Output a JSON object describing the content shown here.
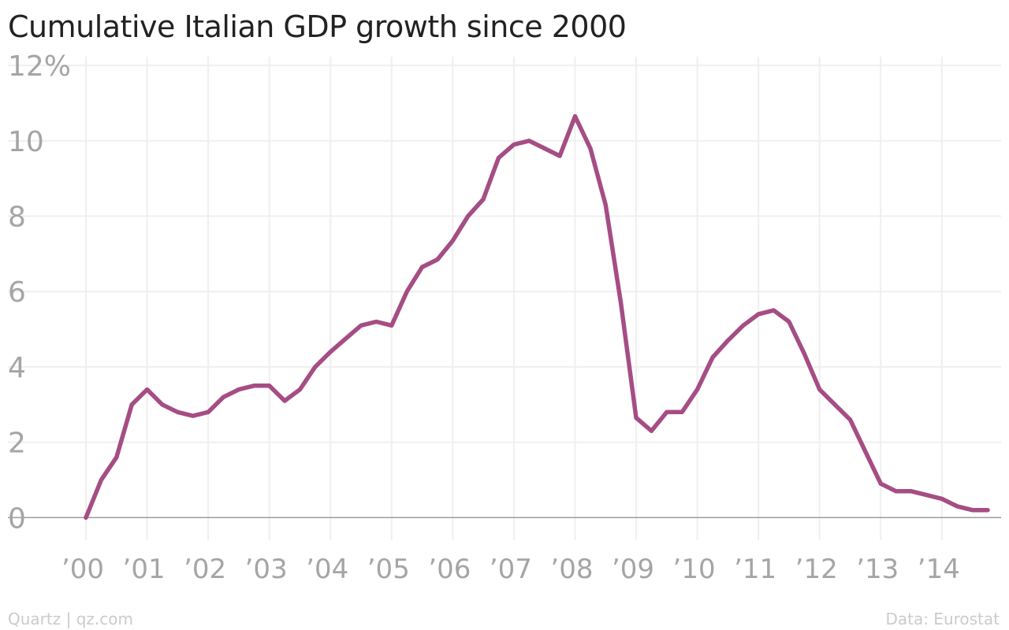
{
  "chart_data": {
    "type": "line",
    "title": "Cumulative Italian GDP growth since 2000",
    "xlabel": "",
    "ylabel": "",
    "y_ticks": [
      {
        "value": 0,
        "label": "0"
      },
      {
        "value": 2,
        "label": "2"
      },
      {
        "value": 4,
        "label": "4"
      },
      {
        "value": 6,
        "label": "6"
      },
      {
        "value": 8,
        "label": "8"
      },
      {
        "value": 10,
        "label": "10"
      },
      {
        "value": 12,
        "label": "12%"
      }
    ],
    "x_ticks": [
      {
        "value": 2000,
        "label": "’00"
      },
      {
        "value": 2001,
        "label": "’01"
      },
      {
        "value": 2002,
        "label": "’02"
      },
      {
        "value": 2003,
        "label": "’03"
      },
      {
        "value": 2004,
        "label": "’04"
      },
      {
        "value": 2005,
        "label": "’05"
      },
      {
        "value": 2006,
        "label": "’06"
      },
      {
        "value": 2007,
        "label": "’07"
      },
      {
        "value": 2008,
        "label": "’08"
      },
      {
        "value": 2009,
        "label": "’09"
      },
      {
        "value": 2010,
        "label": "’10"
      },
      {
        "value": 2011,
        "label": "’11"
      },
      {
        "value": 2012,
        "label": "’12"
      },
      {
        "value": 2013,
        "label": "’13"
      },
      {
        "value": 2014,
        "label": "’14"
      }
    ],
    "xlim": [
      2000,
      2014.75
    ],
    "ylim": [
      -0.6,
      12.4
    ],
    "grid": true,
    "color": "#a54d84",
    "series": [
      {
        "x": [
          2000,
          2000.25,
          2000.5,
          2000.75,
          2001,
          2001.25,
          2001.5,
          2001.75,
          2002,
          2002.25,
          2002.5,
          2002.75,
          2003,
          2003.25,
          2003.5,
          2003.75,
          2004,
          2004.25,
          2004.5,
          2004.75,
          2005,
          2005.25,
          2005.5,
          2005.75,
          2006,
          2006.25,
          2006.5,
          2006.75,
          2007,
          2007.25,
          2007.5,
          2007.75,
          2008,
          2008.25,
          2008.5,
          2008.75,
          2009,
          2009.25,
          2009.5,
          2009.75,
          2010,
          2010.25,
          2010.5,
          2010.75,
          2011,
          2011.25,
          2011.5,
          2011.75,
          2012,
          2012.25,
          2012.5,
          2012.75,
          2013,
          2013.25,
          2013.5,
          2013.75,
          2014,
          2014.25,
          2014.5,
          2014.75
        ],
        "y": [
          0.0,
          1.0,
          1.6,
          3.0,
          3.4,
          3.0,
          2.8,
          2.7,
          2.8,
          3.2,
          3.4,
          3.5,
          3.5,
          3.1,
          3.4,
          4.0,
          4.4,
          4.75,
          5.1,
          5.2,
          5.1,
          6.0,
          6.65,
          6.85,
          7.35,
          8.0,
          8.45,
          9.55,
          9.9,
          10.0,
          9.8,
          9.6,
          10.65,
          9.8,
          8.3,
          5.7,
          2.65,
          2.3,
          2.8,
          2.8,
          3.4,
          4.25,
          4.7,
          5.1,
          5.4,
          5.5,
          5.2,
          4.35,
          3.4,
          3.0,
          2.6,
          1.75,
          0.9,
          0.7,
          0.7,
          0.6,
          0.5,
          0.3,
          0.2,
          0.2
        ]
      }
    ]
  },
  "footer": {
    "left": "Quartz | qz.com",
    "right": "Data: Eurostat"
  }
}
